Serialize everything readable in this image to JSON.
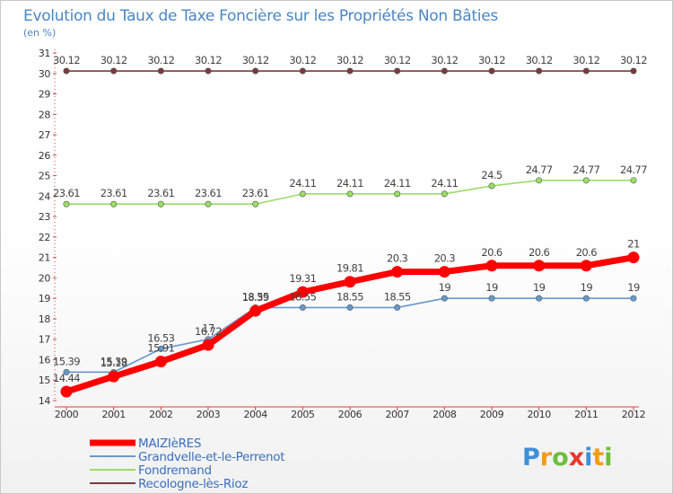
{
  "chart_data": {
    "type": "line",
    "title": "Evolution du Taux de Taxe Foncière sur les Propriétés Non Bâties",
    "subtitle": "(en %)",
    "x": [
      "2000",
      "2001",
      "2002",
      "2003",
      "2004",
      "2005",
      "2006",
      "2007",
      "2008",
      "2009",
      "2010",
      "2011",
      "2012"
    ],
    "yticks": [
      "14",
      "15",
      "16",
      "17",
      "18",
      "19",
      "20",
      "21",
      "22",
      "23",
      "24",
      "25",
      "26",
      "27",
      "28",
      "29",
      "30",
      "31"
    ],
    "ylim": [
      14,
      31
    ],
    "grid": false,
    "legend_position": "bottom-left",
    "series": [
      {
        "name": "MAIZIèRES",
        "color": "#ff0000",
        "values": [
          14.44,
          15.18,
          15.91,
          16.72,
          18.39,
          19.31,
          19.81,
          20.3,
          20.3,
          20.6,
          20.6,
          20.6,
          21
        ],
        "labels": [
          "14.44",
          "15.18",
          "15.91",
          "16.72",
          "18.39",
          "19.31",
          "19.81",
          "20.3",
          "20.3",
          "20.6",
          "20.6",
          "20.6",
          "21"
        ]
      },
      {
        "name": "Grandvelle-et-le-Perrenot",
        "color": "#6699cc",
        "values": [
          15.39,
          15.39,
          16.53,
          17,
          18.55,
          18.55,
          18.55,
          18.55,
          19,
          19,
          19,
          19,
          19
        ],
        "labels": [
          "15.39",
          "15.39",
          "16.53",
          "17",
          "18.55",
          "18.55",
          "18.55",
          "18.55",
          "19",
          "19",
          "19",
          "19",
          "19"
        ]
      },
      {
        "name": "Fondremand",
        "color": "#99dd66",
        "values": [
          23.61,
          23.61,
          23.61,
          23.61,
          23.61,
          24.11,
          24.11,
          24.11,
          24.11,
          24.5,
          24.77,
          24.77,
          24.77
        ],
        "labels": [
          "23.61",
          "23.61",
          "23.61",
          "23.61",
          "23.61",
          "24.11",
          "24.11",
          "24.11",
          "24.11",
          "24.5",
          "24.77",
          "24.77",
          "24.77"
        ]
      },
      {
        "name": "Recologne-lès-Rioz",
        "color": "#7a3b3b",
        "values": [
          30.12,
          30.12,
          30.12,
          30.12,
          30.12,
          30.12,
          30.12,
          30.12,
          30.12,
          30.12,
          30.12,
          30.12,
          30.12
        ],
        "labels": [
          "30.12",
          "30.12",
          "30.12",
          "30.12",
          "30.12",
          "30.12",
          "30.12",
          "30.12",
          "30.12",
          "30.12",
          "30.12",
          "30.12",
          "30.12"
        ]
      }
    ]
  },
  "logo": {
    "letters": [
      "P",
      "r",
      "o",
      "x",
      "i",
      "t",
      "i"
    ],
    "colors": [
      "#3e8fd8",
      "#f29b1a",
      "#6cbe3c",
      "#e6382c",
      "#3e8fd8",
      "#f29b1a",
      "#6cbe3c"
    ]
  }
}
